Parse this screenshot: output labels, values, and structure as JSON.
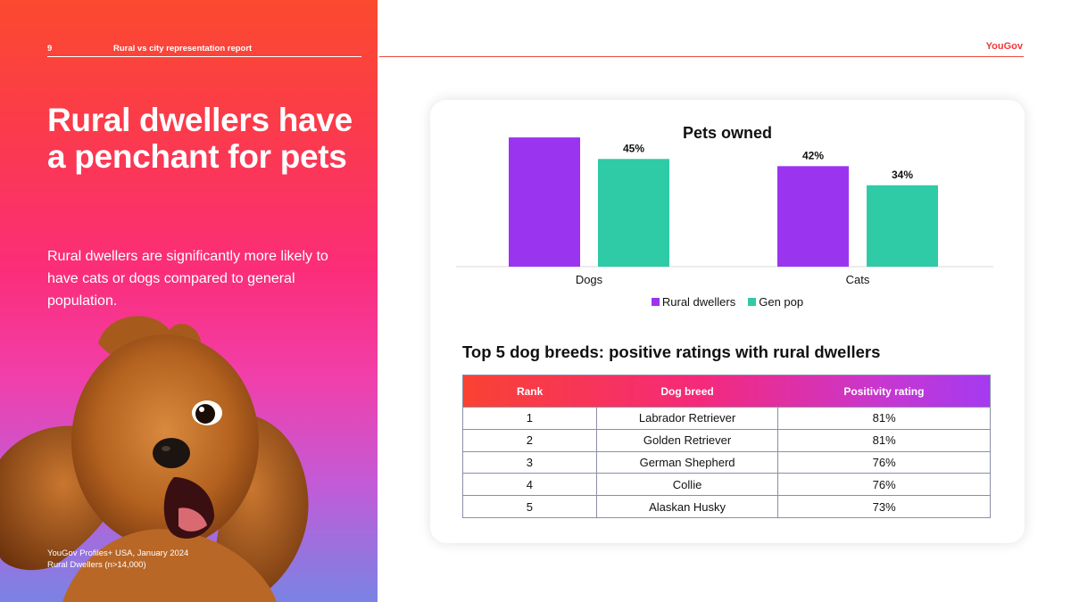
{
  "header": {
    "page_number": "9",
    "report_title": "Rural vs city representation report",
    "brand": "YouGov"
  },
  "left": {
    "headline": "Rural dwellers have a penchant for pets",
    "subtext": "Rural dwellers are significantly more likely to have cats or dogs compared to general population.",
    "source_line1": "YouGov Profiles+ USA, January 2024",
    "source_line2": "Rural Dwellers (n>14,000)"
  },
  "colors": {
    "rural": "#9b34ef",
    "genpop": "#2fcaa6",
    "brand": "#ef3a3a"
  },
  "chart_data": {
    "type": "bar",
    "title": "Pets owned",
    "categories": [
      "Dogs",
      "Cats"
    ],
    "series": [
      {
        "name": "Rural dwellers",
        "values": [
          54,
          42
        ]
      },
      {
        "name": "Gen pop",
        "values": [
          45,
          34
        ]
      }
    ],
    "value_suffix": "%",
    "ylim": [
      0,
      60
    ],
    "grid": false,
    "legend": "bottom"
  },
  "table": {
    "title": "Top 5 dog breeds: positive ratings with rural dwellers",
    "headers": [
      "Rank",
      "Dog breed",
      "Positivity rating"
    ],
    "rows": [
      [
        "1",
        "Labrador Retriever",
        "81%"
      ],
      [
        "2",
        "Golden Retriever",
        "81%"
      ],
      [
        "3",
        "German Shepherd",
        "76%"
      ],
      [
        "4",
        "Collie",
        "76%"
      ],
      [
        "5",
        "Alaskan Husky",
        "73%"
      ]
    ]
  }
}
